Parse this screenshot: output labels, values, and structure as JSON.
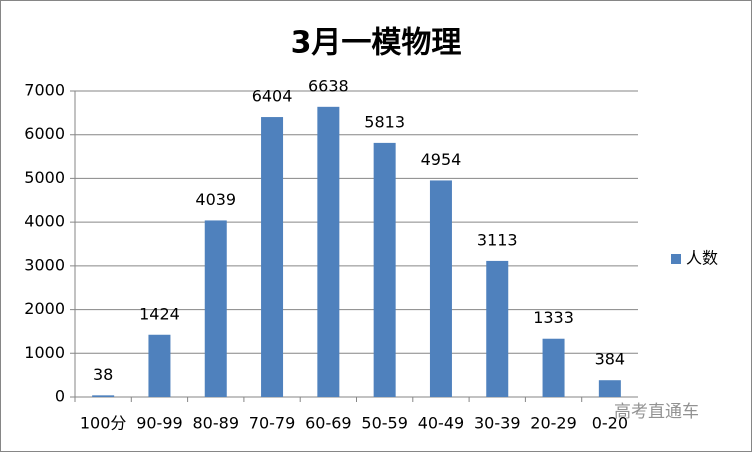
{
  "chart_data": {
    "type": "bar",
    "title": "3月一模物理",
    "categories": [
      "100分",
      "90-99",
      "80-89",
      "70-79",
      "60-69",
      "50-59",
      "40-49",
      "30-39",
      "20-29",
      "0-20"
    ],
    "series": [
      {
        "name": "人数",
        "color": "#4f81bd",
        "values": [
          38,
          1424,
          4039,
          6404,
          6638,
          5813,
          4954,
          3113,
          1333,
          384
        ]
      }
    ],
    "ylim": [
      0,
      7000
    ],
    "yticks": [
      0,
      1000,
      2000,
      3000,
      4000,
      5000,
      6000,
      7000
    ],
    "grid": true,
    "legend": "right",
    "watermark": "高考直通车"
  }
}
